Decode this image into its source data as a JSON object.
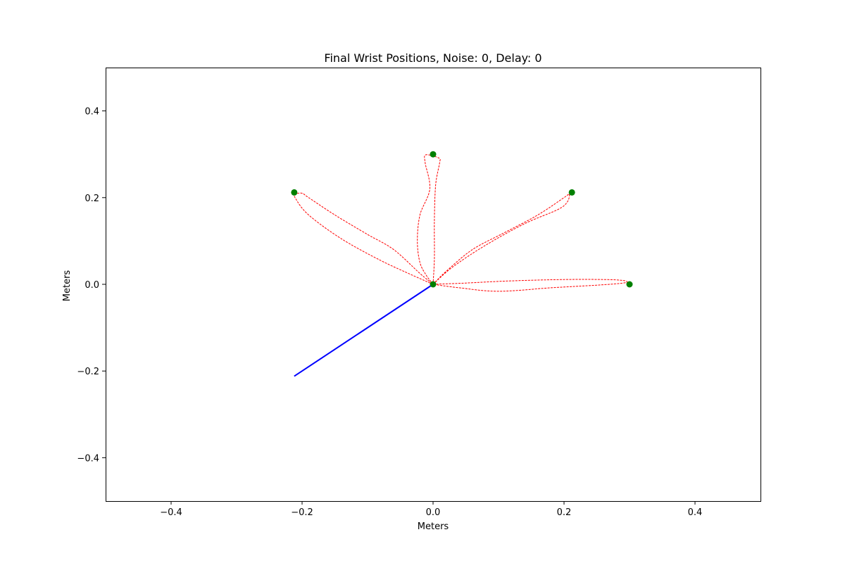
{
  "chart_data": {
    "type": "line",
    "title": "Final Wrist Positions, Noise: 0, Delay: 0",
    "xlabel": "Meters",
    "ylabel": "Meters",
    "xlim": [
      -0.5,
      0.5
    ],
    "ylim": [
      -0.5,
      0.5
    ],
    "xticks": [
      -0.4,
      -0.2,
      0.0,
      0.2,
      0.4
    ],
    "xtick_labels": [
      "−0.4",
      "−0.2",
      "0.0",
      "0.2",
      "0.4"
    ],
    "yticks": [
      -0.4,
      -0.2,
      0.0,
      0.2,
      0.4
    ],
    "ytick_labels": [
      "−0.4",
      "−0.2",
      "0.0",
      "0.2",
      "0.4"
    ],
    "grid": false,
    "colors": {
      "target": "#008000",
      "trajectory": "#ff0000",
      "arm": "#0000ff"
    },
    "targets": [
      {
        "x": 0.0,
        "y": 0.0
      },
      {
        "x": 0.3,
        "y": 0.0
      },
      {
        "x": 0.212,
        "y": 0.212
      },
      {
        "x": 0.0,
        "y": 0.3
      },
      {
        "x": -0.212,
        "y": 0.212
      }
    ],
    "arm_segment": [
      {
        "x": -0.212,
        "y": -0.212
      },
      {
        "x": 0.0,
        "y": 0.0
      }
    ],
    "trajectories": [
      {
        "points": [
          [
            0,
            0
          ],
          [
            0.05,
            0.003
          ],
          [
            0.12,
            0.008
          ],
          [
            0.2,
            0.011
          ],
          [
            0.26,
            0.011
          ],
          [
            0.29,
            0.009
          ],
          [
            0.296,
            0.005
          ],
          [
            0.285,
            0.002
          ],
          [
            0.25,
            -0.002
          ],
          [
            0.18,
            -0.008
          ],
          [
            0.1,
            -0.016
          ],
          [
            0.04,
            -0.008
          ],
          [
            0,
            0
          ]
        ]
      },
      {
        "points": [
          [
            0,
            0
          ],
          [
            0.02,
            0.03
          ],
          [
            0.06,
            0.08
          ],
          [
            0.11,
            0.12
          ],
          [
            0.16,
            0.16
          ],
          [
            0.2,
            0.2
          ],
          [
            0.208,
            0.208
          ],
          [
            0.205,
            0.19
          ],
          [
            0.19,
            0.172
          ],
          [
            0.14,
            0.14
          ],
          [
            0.08,
            0.09
          ],
          [
            0.03,
            0.04
          ],
          [
            0,
            0
          ]
        ]
      },
      {
        "points": [
          [
            0,
            0
          ],
          [
            0.002,
            0.06
          ],
          [
            0.002,
            0.15
          ],
          [
            0.004,
            0.23
          ],
          [
            0.01,
            0.28
          ],
          [
            0.01,
            0.29
          ],
          [
            0.0,
            0.296
          ],
          [
            -0.012,
            0.298
          ],
          [
            -0.012,
            0.28
          ],
          [
            -0.005,
            0.22
          ],
          [
            -0.02,
            0.16
          ],
          [
            -0.024,
            0.1
          ],
          [
            -0.02,
            0.05
          ],
          [
            -0.01,
            0.02
          ],
          [
            0,
            0
          ]
        ]
      },
      {
        "points": [
          [
            0,
            0
          ],
          [
            -0.03,
            0.02
          ],
          [
            -0.08,
            0.055
          ],
          [
            -0.14,
            0.105
          ],
          [
            -0.19,
            0.16
          ],
          [
            -0.21,
            0.198
          ],
          [
            -0.21,
            0.208
          ],
          [
            -0.2,
            0.21
          ],
          [
            -0.19,
            0.2
          ],
          [
            -0.15,
            0.16
          ],
          [
            -0.1,
            0.115
          ],
          [
            -0.06,
            0.08
          ],
          [
            -0.02,
            0.025
          ],
          [
            0,
            0
          ]
        ]
      }
    ]
  }
}
